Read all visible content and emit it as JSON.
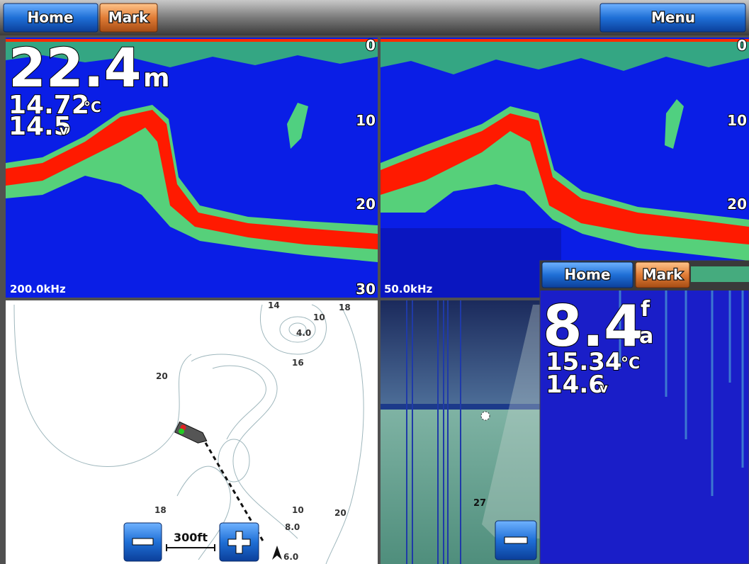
{
  "top_bar": {
    "home": "Home",
    "mark": "Mark",
    "menu": "Menu"
  },
  "sonar_left": {
    "depth": "22.4",
    "depth_unit": "m",
    "temperature": "14.72",
    "temperature_unit": "°C",
    "voltage": "14.5",
    "voltage_unit": "v",
    "scale": [
      "0",
      "10",
      "20",
      "30"
    ],
    "frequency": "200.0kHz"
  },
  "sonar_right": {
    "scale": [
      "0",
      "10",
      "20"
    ],
    "frequency": "50.0kHz"
  },
  "map": {
    "contour_labels": [
      "14",
      "10",
      "18",
      "4.0",
      "16",
      "20",
      "18",
      "10",
      "20",
      "8.0",
      "6.0"
    ],
    "zoom_scale": "300ft"
  },
  "perspective_view": {
    "depth_label": "27"
  },
  "inset": {
    "home": "Home",
    "mark": "Mark",
    "depth": "8.4",
    "depth_unit_top": "f",
    "depth_unit_bottom": "a",
    "temperature": "15.34",
    "temperature_unit": "°C",
    "voltage": "14.6",
    "voltage_unit": "v"
  }
}
